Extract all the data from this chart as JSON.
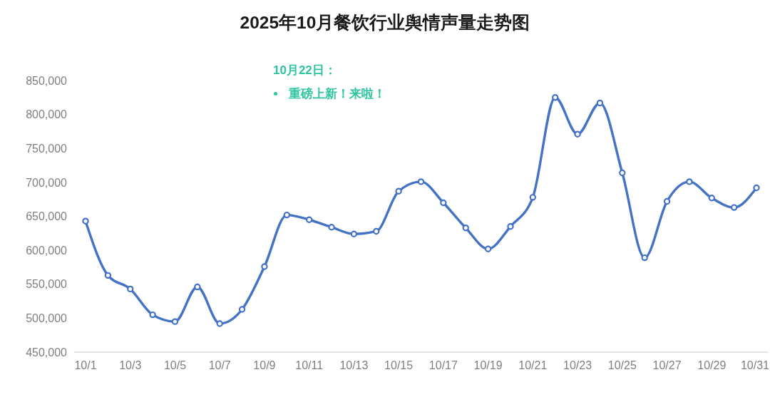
{
  "chart_data": {
    "type": "line",
    "title": "2025年10月餐饮行业舆情声量走势图",
    "annotations": [
      "10月22日：",
      "重磅上新！来啦！"
    ],
    "categories": [
      "10/1",
      null,
      "10/3",
      null,
      "10/5",
      null,
      "10/7",
      null,
      "10/9",
      null,
      "10/11",
      null,
      "10/13",
      null,
      "10/15",
      null,
      "10/17",
      null,
      "10/19",
      null,
      "10/21",
      null,
      "10/23",
      null,
      "10/25",
      null,
      "10/27",
      null,
      "10/29",
      null,
      "10/31"
    ],
    "values": [
      643000,
      563000,
      543000,
      505000,
      495000,
      546000,
      492000,
      513000,
      576000,
      652000,
      645000,
      634000,
      624000,
      628000,
      687000,
      701000,
      670000,
      633000,
      602000,
      635000,
      678000,
      825000,
      771000,
      817000,
      714000,
      589000,
      672000,
      701000,
      677000,
      663000,
      692000
    ],
    "color": "#4472c4",
    "ylim": [
      450000,
      850000
    ],
    "yticks": [
      {
        "value": 450000,
        "label": "450,000"
      },
      {
        "value": 500000,
        "label": "500,000"
      },
      {
        "value": 550000,
        "label": "550,000"
      },
      {
        "value": 600000,
        "label": "600,000"
      },
      {
        "value": 650000,
        "label": "650,000"
      },
      {
        "value": 700000,
        "label": "700,000"
      },
      {
        "value": 750000,
        "label": "750,000"
      },
      {
        "value": 800000,
        "label": "800,000"
      },
      {
        "value": 850000,
        "label": "850,000"
      }
    ],
    "marker": "circle",
    "line_style": "solid"
  }
}
